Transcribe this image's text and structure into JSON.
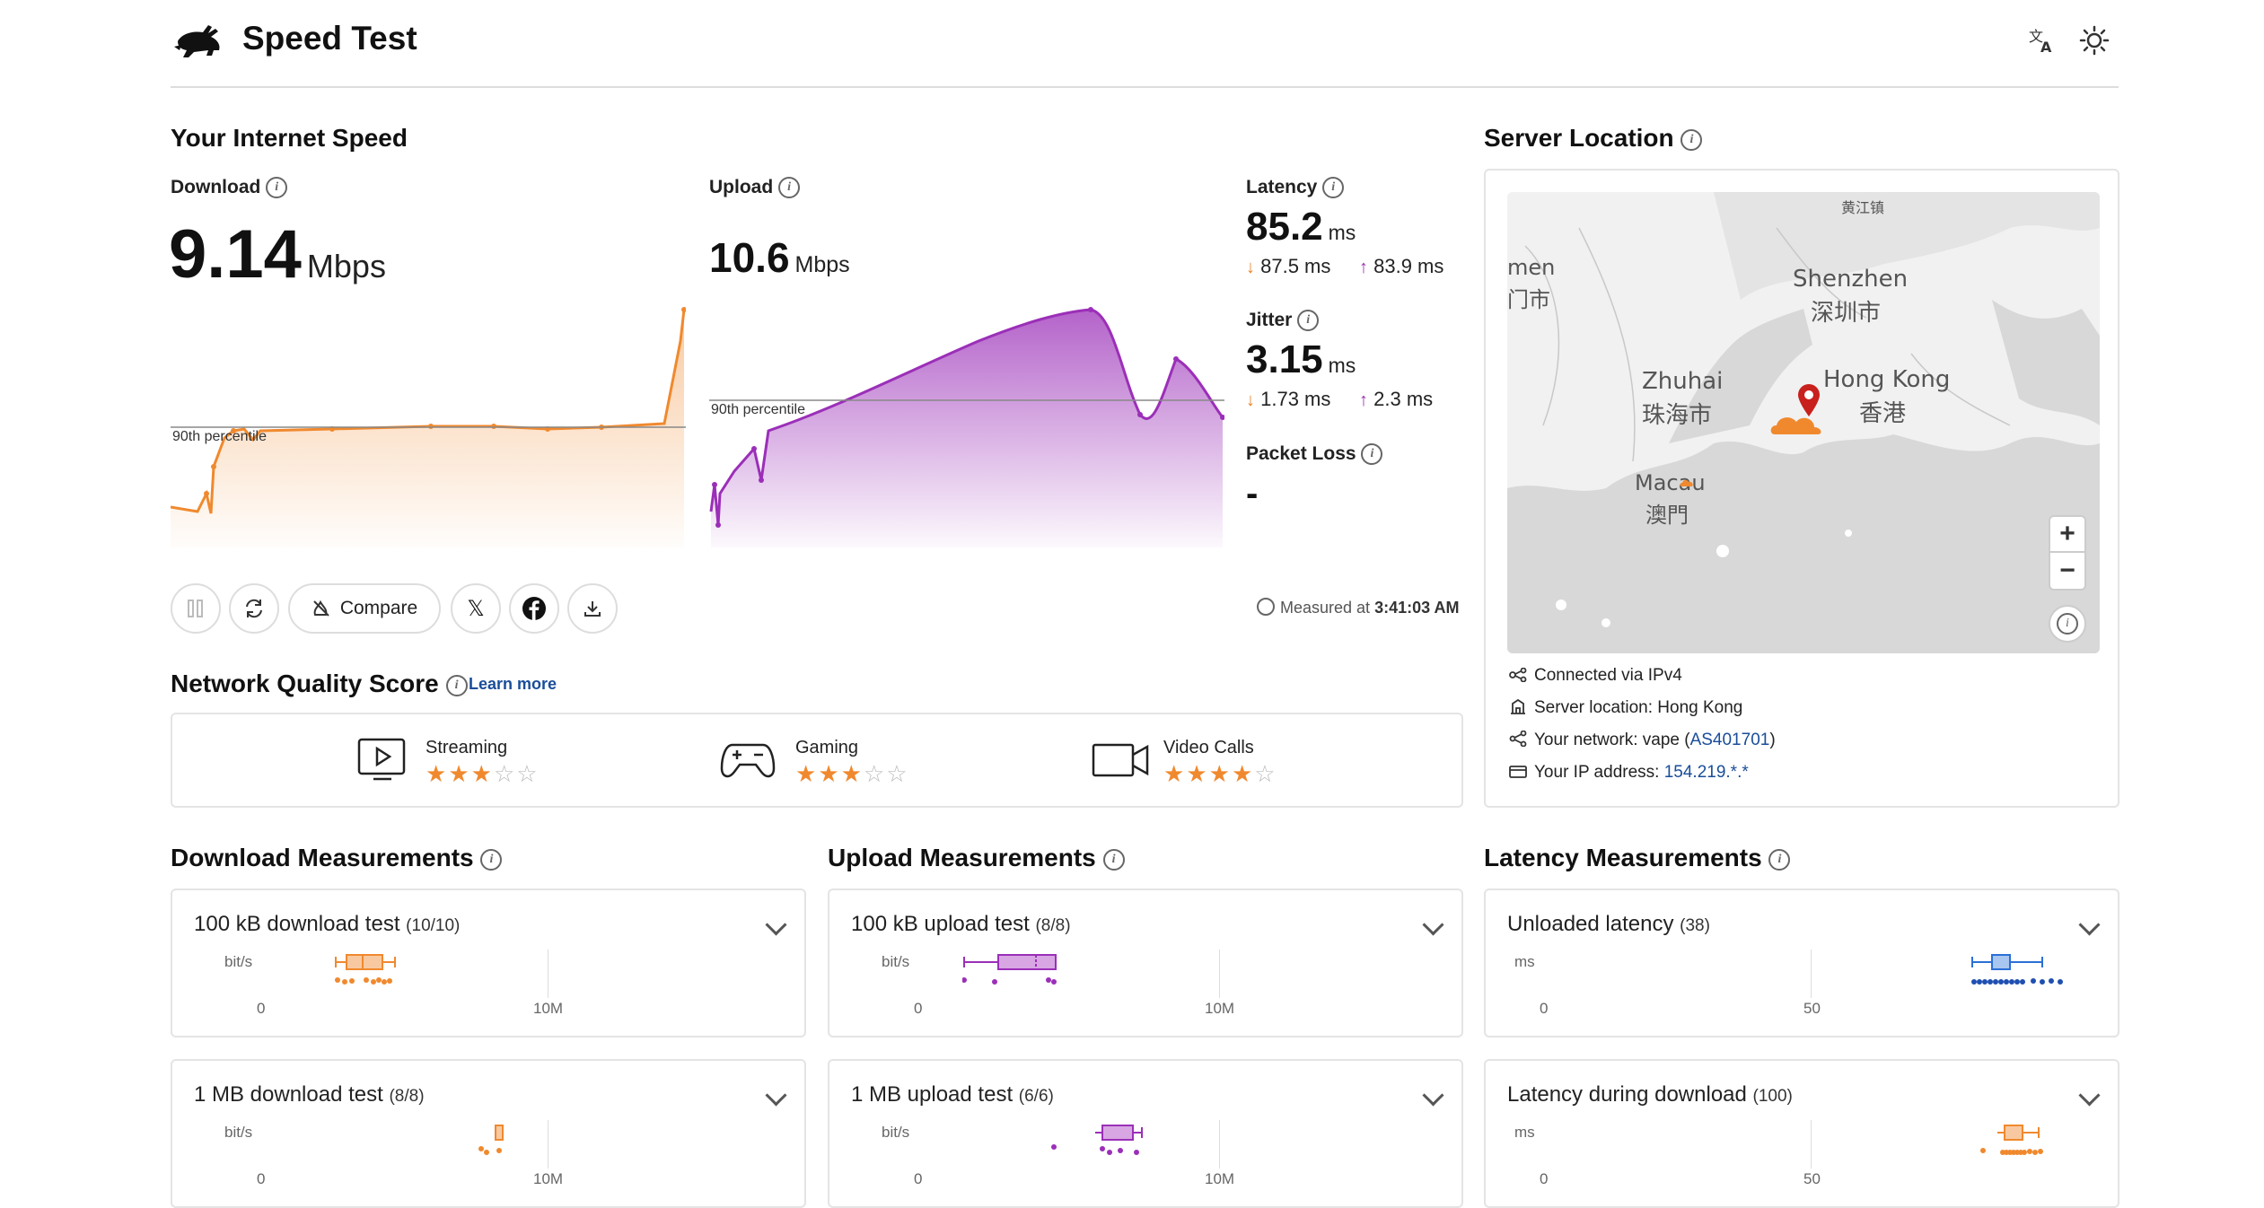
{
  "header": {
    "title": "Speed Test"
  },
  "speed": {
    "section_title": "Your Internet Speed",
    "download": {
      "label": "Download",
      "value": "9.14",
      "unit": "Mbps",
      "percentile_label": "90th percentile"
    },
    "upload": {
      "label": "Upload",
      "value": "10.6",
      "unit": "Mbps",
      "percentile_label": "90th percentile"
    },
    "latency": {
      "label": "Latency",
      "value": "85.2",
      "unit": "ms",
      "down": "87.5 ms",
      "up": "83.9 ms"
    },
    "jitter": {
      "label": "Jitter",
      "value": "3.15",
      "unit": "ms",
      "down": "1.73 ms",
      "up": "2.3 ms"
    },
    "packet_loss": {
      "label": "Packet Loss",
      "value": "-"
    },
    "compare_label": "Compare",
    "measured_prefix": "Measured at",
    "measured_time": "3:41:03 AM"
  },
  "network_quality": {
    "title": "Network Quality Score",
    "learn_more": "Learn more",
    "items": [
      {
        "label": "Streaming",
        "stars": 3,
        "icon": "tv-play-icon"
      },
      {
        "label": "Gaming",
        "stars": 3,
        "icon": "gamepad-icon"
      },
      {
        "label": "Video Calls",
        "stars": 4,
        "icon": "video-camera-icon"
      }
    ]
  },
  "server": {
    "title": "Server Location",
    "map_labels": {
      "huangjiang": "黄江镇",
      "shenzhen_en": "Shenzhen",
      "shenzhen_zh": "深圳市",
      "dongguan_en": "men",
      "dongguan_zh": "门市",
      "zhuhai_en": "Zhuhai",
      "zhuhai_zh": "珠海市",
      "hongkong_en": "Hong Kong",
      "hongkong_zh": "香港",
      "macau_en": "Macau",
      "macau_zh": "澳門"
    },
    "connected_via": "Connected via  IPv4",
    "location_prefix": "Server location: ",
    "location": "Hong Kong",
    "network_prefix": "Your network: ",
    "network_name": "vape",
    "network_as": "AS401701",
    "ip_prefix": "Your IP address: ",
    "ip": "154.219.*.*"
  },
  "measurements": {
    "download": {
      "title": "Download Measurements",
      "rows": [
        {
          "name": "100 kB download test",
          "count": "(10/10)",
          "unit": "bit/s",
          "min": "0",
          "max": "10M"
        },
        {
          "name": "1 MB download test",
          "count": "(8/8)",
          "unit": "bit/s",
          "min": "0",
          "max": "10M"
        }
      ]
    },
    "upload": {
      "title": "Upload Measurements",
      "rows": [
        {
          "name": "100 kB upload test",
          "count": "(8/8)",
          "unit": "bit/s",
          "min": "0",
          "max": "10M"
        },
        {
          "name": "1 MB upload test",
          "count": "(6/6)",
          "unit": "bit/s",
          "min": "0",
          "max": "10M"
        }
      ]
    },
    "latency": {
      "title": "Latency Measurements",
      "rows": [
        {
          "name": "Unloaded latency",
          "count": "(38)",
          "unit": "ms",
          "min": "0",
          "max": "50"
        },
        {
          "name": "Latency during download",
          "count": "(100)",
          "unit": "ms",
          "min": "0",
          "max": "50"
        }
      ]
    }
  },
  "colors": {
    "download": "#f0892e",
    "upload": "#9b2fb8",
    "latency_unloaded": "#2b6fd6",
    "link": "#1a4d99",
    "star": "#f0892e"
  }
}
